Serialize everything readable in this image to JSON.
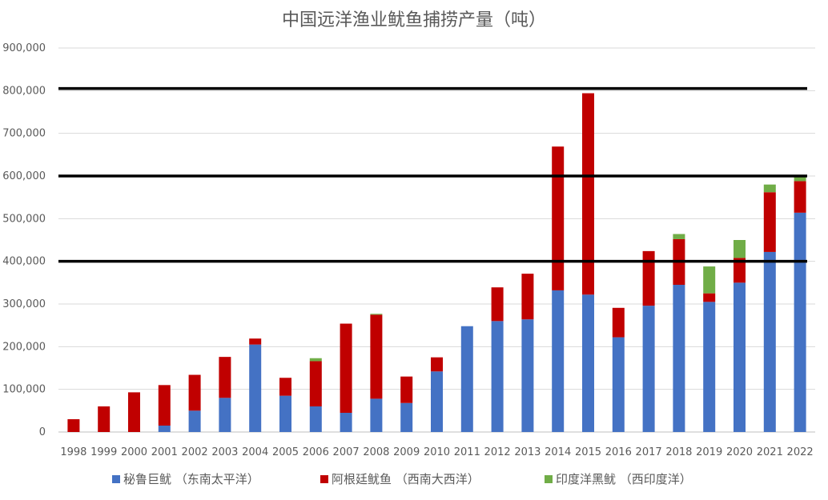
{
  "chart_data": {
    "type": "bar",
    "stacked": true,
    "title": "中国远洋渔业鱿鱼捕捞产量（吨）",
    "xlabel": "",
    "ylabel": "",
    "ylim": [
      0,
      900000
    ],
    "yticks": [
      0,
      100000,
      200000,
      300000,
      400000,
      500000,
      600000,
      700000,
      800000,
      900000
    ],
    "ytick_labels": [
      "0",
      "100,000",
      "200,000",
      "300,000",
      "400,000",
      "500,000",
      "600,000",
      "700,000",
      "800,000",
      "900,000"
    ],
    "grid": true,
    "legend_position": "bottom",
    "categories": [
      "1998",
      "1999",
      "2000",
      "2001",
      "2002",
      "2003",
      "2004",
      "2005",
      "2006",
      "2007",
      "2008",
      "2009",
      "2010",
      "2011",
      "2012",
      "2013",
      "2014",
      "2015",
      "2016",
      "2017",
      "2018",
      "2019",
      "2020",
      "2021",
      "2022"
    ],
    "series": [
      {
        "name": "秘鲁巨鱿 （东南太平洋）",
        "color": "#4472C4",
        "values": [
          0,
          0,
          0,
          15000,
          50000,
          80000,
          205000,
          85000,
          60000,
          45000,
          78000,
          68000,
          142000,
          248000,
          260000,
          264000,
          332000,
          322000,
          222000,
          296000,
          345000,
          305000,
          350000,
          422000,
          514000
        ]
      },
      {
        "name": "阿根廷鱿鱼 （西南大西洋）",
        "color": "#C00000",
        "values": [
          30000,
          60000,
          93000,
          95000,
          84000,
          96000,
          14000,
          42000,
          106000,
          209000,
          197000,
          62000,
          33000,
          0,
          79000,
          107000,
          337000,
          472000,
          69000,
          128000,
          107000,
          20000,
          58000,
          140000,
          74000
        ]
      },
      {
        "name": "印度洋黑鱿 （西印度洋）",
        "color": "#70AD47",
        "values": [
          0,
          0,
          0,
          0,
          0,
          0,
          0,
          0,
          7000,
          0,
          2000,
          0,
          0,
          0,
          0,
          0,
          0,
          0,
          0,
          0,
          12000,
          63000,
          42000,
          18000,
          12000
        ]
      }
    ],
    "reference_lines": [
      {
        "y": 400000,
        "color": "#000000"
      },
      {
        "y": 600000,
        "color": "#000000"
      },
      {
        "y": 805000,
        "color": "#000000"
      }
    ]
  }
}
